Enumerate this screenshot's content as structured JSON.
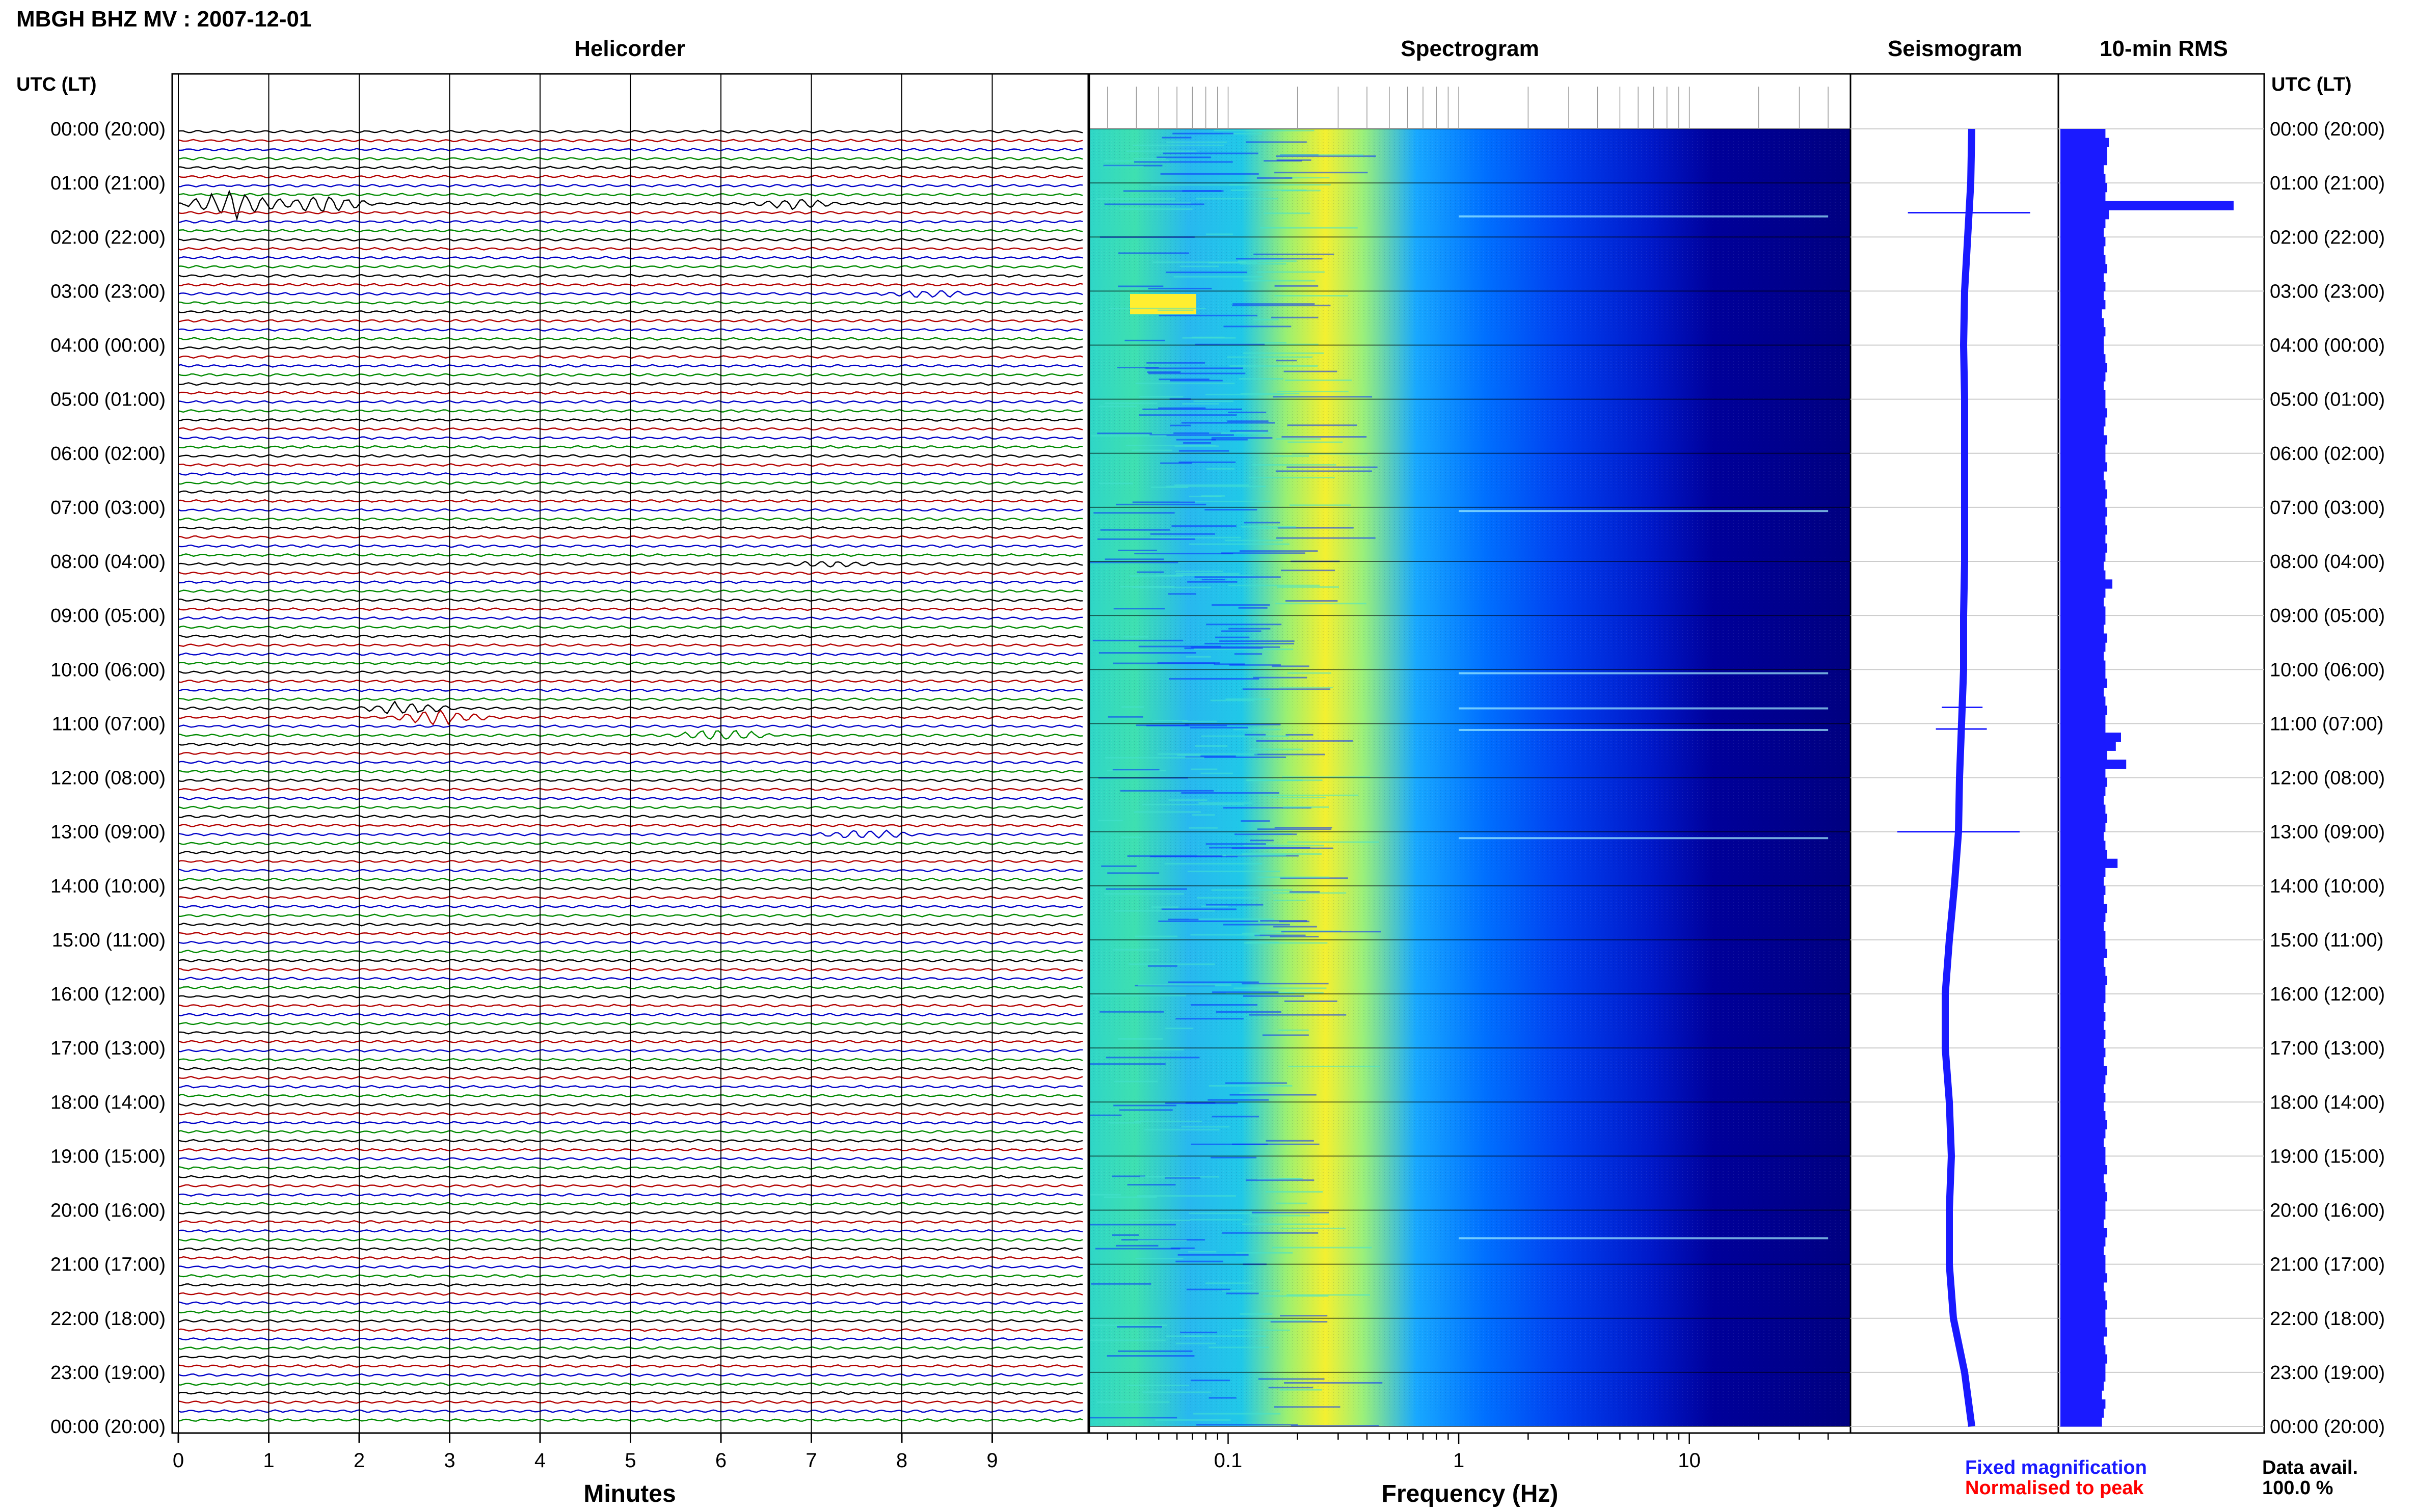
{
  "header": {
    "title": "MBGH BHZ MV : 2007-12-01",
    "utc_label_left": "UTC (LT)",
    "utc_label_right": "UTC (LT)"
  },
  "panels": {
    "helicorder": "Helicorder",
    "spectrogram": "Spectrogram",
    "seismogram": "Seismogram",
    "rms": "10-min RMS"
  },
  "time_labels": [
    "00:00 (20:00)",
    "01:00 (21:00)",
    "02:00 (22:00)",
    "03:00 (23:00)",
    "04:00 (00:00)",
    "05:00 (01:00)",
    "06:00 (02:00)",
    "07:00 (03:00)",
    "08:00 (04:00)",
    "09:00 (05:00)",
    "10:00 (06:00)",
    "11:00 (07:00)",
    "12:00 (08:00)",
    "13:00 (09:00)",
    "14:00 (10:00)",
    "15:00 (11:00)",
    "16:00 (12:00)",
    "17:00 (13:00)",
    "18:00 (14:00)",
    "19:00 (15:00)",
    "20:00 (16:00)",
    "21:00 (17:00)",
    "22:00 (18:00)",
    "23:00 (19:00)",
    "00:00 (20:00)"
  ],
  "footer": {
    "minutes_label": "Minutes",
    "frequency_label": "Frequency (Hz)",
    "legend_fixed": "Fixed magnification",
    "legend_normalised": "Normalised to peak",
    "data_avail_label": "Data avail.",
    "data_avail_value": "100.0 %"
  },
  "colors": {
    "trace_palette": [
      "#000000",
      "#b30000",
      "#0000c8",
      "#008a00"
    ],
    "fixed_magnification": "#1a1aff",
    "normalised_to_peak": "#ff0000",
    "seismogram": "#1a1aff",
    "rms_bar": "#1a1aff"
  },
  "chart_data": [
    {
      "type": "line",
      "name": "helicorder",
      "xlabel": "Minutes",
      "x_ticks": [
        0,
        1,
        2,
        3,
        4,
        5,
        6,
        7,
        8,
        9
      ],
      "xlim": [
        0,
        10
      ],
      "rows_per_hour": 6,
      "hours": 24,
      "events": [
        {
          "hour": 1.33,
          "minute": 0.6,
          "amp": 10,
          "color": "#b30000"
        },
        {
          "hour": 1.33,
          "minute": 1.6,
          "amp": 6,
          "color": "#b30000"
        },
        {
          "hour": 1.33,
          "minute": 6.8,
          "amp": 3,
          "color": "#b30000"
        },
        {
          "hour": 3.0,
          "minute": 8.3,
          "amp": 2,
          "color": "#0000c8"
        },
        {
          "hour": 8.0,
          "minute": 7.2,
          "amp": 2,
          "color": "#008a00"
        },
        {
          "hour": 10.67,
          "minute": 2.5,
          "amp": 4,
          "color": "#000000"
        },
        {
          "hour": 10.83,
          "minute": 2.9,
          "amp": 5,
          "color": "#b30000"
        },
        {
          "hour": 11.17,
          "minute": 6.0,
          "amp": 4,
          "color": "#000000"
        },
        {
          "hour": 13.0,
          "minute": 7.6,
          "amp": 3,
          "color": "#0000c8"
        }
      ]
    },
    {
      "type": "heatmap",
      "name": "spectrogram",
      "xlabel": "Frequency (Hz)",
      "x_scale": "log",
      "xlim": [
        0.025,
        50
      ],
      "x_tick_labels": [
        0.1,
        1,
        10
      ],
      "ylim_hours": [
        0,
        24
      ],
      "colormap": [
        "#00007f",
        "#0000ff",
        "#00a0ff",
        "#3fffbf",
        "#ffff00"
      ]
    },
    {
      "type": "line",
      "name": "seismogram",
      "ylim_hours": [
        0,
        24
      ],
      "offset_by_hour": [
        0.12,
        0.11,
        0.08,
        0.05,
        0.04,
        0.05,
        0.05,
        0.05,
        0.05,
        0.04,
        0.04,
        0.02,
        0.0,
        -0.01,
        -0.05,
        -0.1,
        -0.14,
        -0.14,
        -0.1,
        -0.08,
        -0.1,
        -0.1,
        -0.06,
        0.05,
        0.12
      ],
      "spikes": [
        {
          "hour": 1.55,
          "amp": 0.6
        },
        {
          "hour": 10.7,
          "amp": 0.2
        },
        {
          "hour": 11.1,
          "amp": 0.25
        },
        {
          "hour": 13.0,
          "amp": 0.6
        }
      ]
    },
    {
      "type": "bar",
      "name": "10-min RMS",
      "orientation": "horizontal",
      "ylim_hours": [
        0,
        24
      ],
      "values": [
        0.26,
        0.28,
        0.27,
        0.27,
        0.25,
        0.26,
        0.27,
        0.26,
        1.0,
        0.28,
        0.26,
        0.25,
        0.26,
        0.25,
        0.26,
        0.27,
        0.25,
        0.26,
        0.25,
        0.26,
        0.24,
        0.25,
        0.26,
        0.25,
        0.25,
        0.26,
        0.27,
        0.26,
        0.25,
        0.26,
        0.26,
        0.27,
        0.26,
        0.25,
        0.27,
        0.26,
        0.26,
        0.27,
        0.25,
        0.26,
        0.27,
        0.26,
        0.27,
        0.26,
        0.27,
        0.26,
        0.27,
        0.26,
        0.25,
        0.26,
        0.3,
        0.26,
        0.25,
        0.26,
        0.26,
        0.25,
        0.27,
        0.26,
        0.25,
        0.26,
        0.26,
        0.27,
        0.25,
        0.26,
        0.27,
        0.26,
        0.26,
        0.35,
        0.32,
        0.27,
        0.38,
        0.26,
        0.27,
        0.26,
        0.25,
        0.26,
        0.27,
        0.26,
        0.25,
        0.26,
        0.27,
        0.33,
        0.26,
        0.25,
        0.26,
        0.25,
        0.27,
        0.26,
        0.25,
        0.26,
        0.26,
        0.27,
        0.25,
        0.26,
        0.27,
        0.26,
        0.26,
        0.25,
        0.26,
        0.25,
        0.26,
        0.25,
        0.26,
        0.25,
        0.27,
        0.26,
        0.25,
        0.26,
        0.25,
        0.26,
        0.27,
        0.26,
        0.25,
        0.26,
        0.26,
        0.27,
        0.25,
        0.26,
        0.27,
        0.26,
        0.26,
        0.25,
        0.27,
        0.26,
        0.25,
        0.26,
        0.26,
        0.27,
        0.25,
        0.26,
        0.27,
        0.26,
        0.26,
        0.27,
        0.25,
        0.26,
        0.27,
        0.26,
        0.26,
        0.25,
        0.24,
        0.26,
        0.25,
        0.24
      ]
    }
  ]
}
